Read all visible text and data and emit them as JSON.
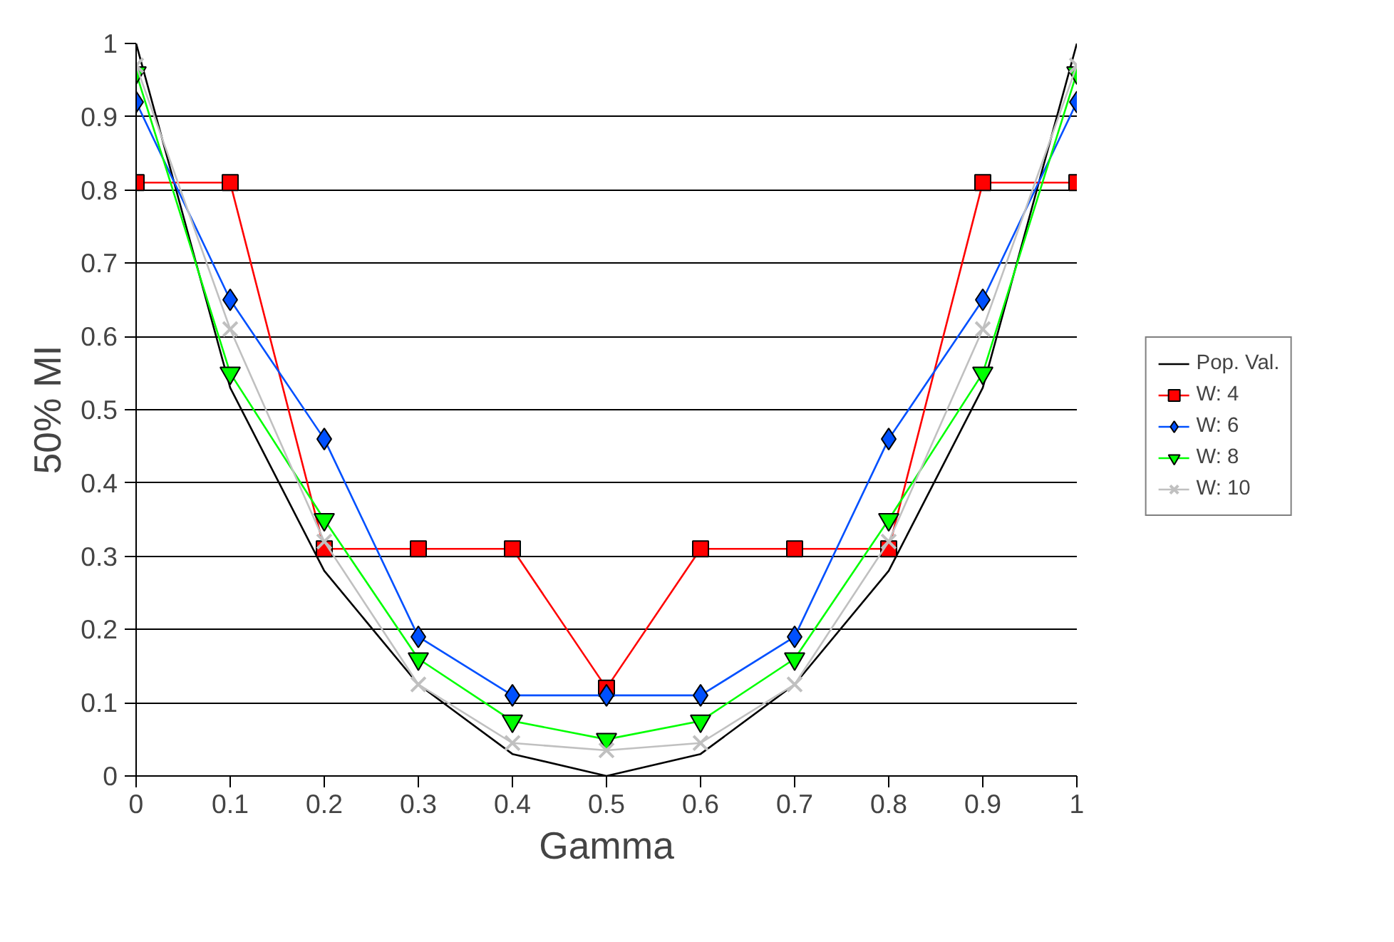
{
  "chart_data": {
    "type": "line",
    "xlabel": "Gamma",
    "ylabel": "50% MI",
    "x": [
      0,
      0.1,
      0.2,
      0.3,
      0.4,
      0.5,
      0.6,
      0.7,
      0.8,
      0.9,
      1
    ],
    "series": [
      {
        "name": "Pop. Val.",
        "color": "#000000",
        "marker": "none",
        "values": [
          1.0,
          0.53,
          0.28,
          0.125,
          0.03,
          0.0,
          0.03,
          0.125,
          0.28,
          0.53,
          1.0
        ]
      },
      {
        "name": "W: 4",
        "color": "#ff0000",
        "marker": "square",
        "values": [
          0.81,
          0.81,
          0.31,
          0.31,
          0.31,
          0.12,
          0.31,
          0.31,
          0.31,
          0.81,
          0.81
        ]
      },
      {
        "name": "W: 6",
        "color": "#0050ff",
        "marker": "diamond",
        "values": [
          0.92,
          0.65,
          0.46,
          0.19,
          0.11,
          0.11,
          0.11,
          0.19,
          0.46,
          0.65,
          0.92
        ]
      },
      {
        "name": "W: 8",
        "color": "#00ff00",
        "marker": "triangle_down",
        "values": [
          0.96,
          0.55,
          0.35,
          0.16,
          0.075,
          0.05,
          0.075,
          0.16,
          0.35,
          0.55,
          0.96
        ]
      },
      {
        "name": "W: 10",
        "color": "#c0c0c0",
        "marker": "cross",
        "values": [
          0.97,
          0.61,
          0.32,
          0.125,
          0.045,
          0.035,
          0.045,
          0.125,
          0.32,
          0.61,
          0.97
        ]
      }
    ],
    "xlim": [
      0,
      1
    ],
    "ylim": [
      0,
      1
    ],
    "xticks": [
      0,
      0.1,
      0.2,
      0.3,
      0.4,
      0.5,
      0.6,
      0.7,
      0.8,
      0.9,
      1
    ],
    "yticks": [
      0,
      0.1,
      0.2,
      0.3,
      0.4,
      0.5,
      0.6,
      0.7,
      0.8,
      0.9,
      1
    ],
    "grid": "y",
    "legend": "right"
  }
}
